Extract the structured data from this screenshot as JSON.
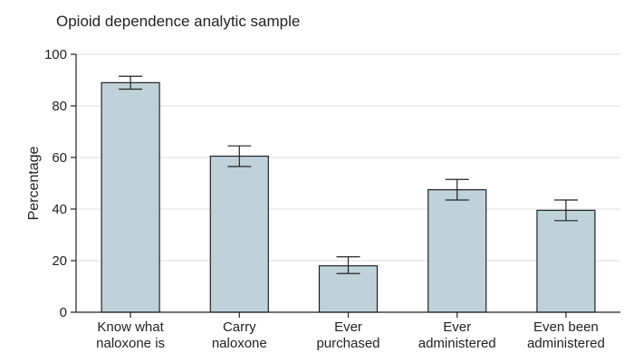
{
  "chart_data": {
    "type": "bar",
    "title": "Opioid dependence analytic sample",
    "xlabel": "",
    "ylabel": "Percentage",
    "ylim": [
      0,
      100
    ],
    "yticks": [
      0,
      20,
      40,
      60,
      80,
      100
    ],
    "grid": true,
    "categories": [
      [
        "Know what",
        "naloxone is"
      ],
      [
        "Carry",
        "naloxone"
      ],
      [
        "Ever",
        "purchased"
      ],
      [
        "Ever",
        "administered"
      ],
      [
        "Even been",
        "administered"
      ]
    ],
    "values": [
      89,
      60.5,
      18,
      47.5,
      39.5
    ],
    "error_low": [
      86.5,
      56.5,
      15,
      43.5,
      35.5
    ],
    "error_high": [
      91.5,
      64.5,
      21.5,
      51.5,
      43.5
    ],
    "colors": {
      "bar_fill": "#bfd2da",
      "bar_stroke": "#222222",
      "grid": "#dddddd",
      "axis": "#222222"
    }
  }
}
